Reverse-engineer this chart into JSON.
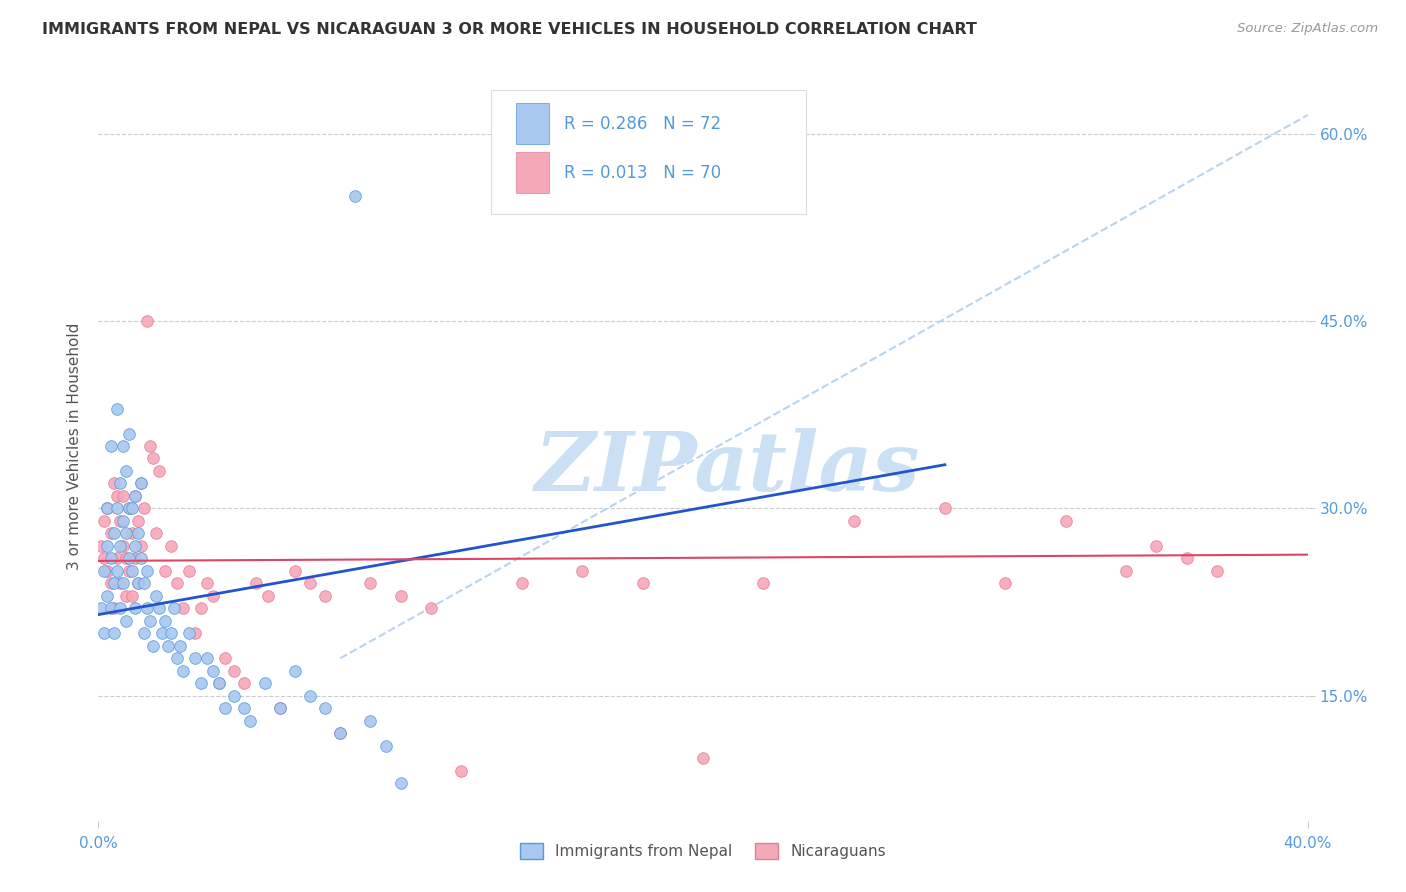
{
  "title": "IMMIGRANTS FROM NEPAL VS NICARAGUAN 3 OR MORE VEHICLES IN HOUSEHOLD CORRELATION CHART",
  "source": "Source: ZipAtlas.com",
  "ylabel": "3 or more Vehicles in Household",
  "ytick_labels": [
    "15.0%",
    "30.0%",
    "45.0%",
    "60.0%"
  ],
  "ytick_values": [
    0.15,
    0.3,
    0.45,
    0.6
  ],
  "xmin": 0.0,
  "xmax": 0.4,
  "ymin": 0.05,
  "ymax": 0.65,
  "legend_label1": "R = 0.286   N = 72",
  "legend_label2": "R = 0.013   N = 70",
  "legend_bottom_label1": "Immigrants from Nepal",
  "legend_bottom_label2": "Nicaraguans",
  "color_blue": "#a8c8f0",
  "color_pink": "#f5a8b8",
  "color_blue_dark": "#5599dd",
  "color_pink_dark": "#e87a9a",
  "line_blue": "#2255cc",
  "line_pink": "#dd4466",
  "line_dashed": "#b8d4ee",
  "nepal_x": [
    0.001,
    0.002,
    0.002,
    0.003,
    0.003,
    0.003,
    0.004,
    0.004,
    0.004,
    0.005,
    0.005,
    0.005,
    0.006,
    0.006,
    0.006,
    0.007,
    0.007,
    0.007,
    0.008,
    0.008,
    0.008,
    0.009,
    0.009,
    0.009,
    0.01,
    0.01,
    0.01,
    0.011,
    0.011,
    0.012,
    0.012,
    0.012,
    0.013,
    0.013,
    0.014,
    0.014,
    0.015,
    0.015,
    0.016,
    0.016,
    0.017,
    0.018,
    0.019,
    0.02,
    0.021,
    0.022,
    0.023,
    0.024,
    0.025,
    0.026,
    0.027,
    0.028,
    0.03,
    0.032,
    0.034,
    0.036,
    0.038,
    0.04,
    0.042,
    0.045,
    0.048,
    0.05,
    0.055,
    0.06,
    0.065,
    0.07,
    0.075,
    0.08,
    0.085,
    0.09,
    0.095,
    0.1
  ],
  "nepal_y": [
    0.22,
    0.2,
    0.25,
    0.23,
    0.27,
    0.3,
    0.26,
    0.22,
    0.35,
    0.24,
    0.28,
    0.2,
    0.3,
    0.25,
    0.38,
    0.27,
    0.32,
    0.22,
    0.29,
    0.24,
    0.35,
    0.28,
    0.33,
    0.21,
    0.3,
    0.26,
    0.36,
    0.25,
    0.3,
    0.27,
    0.22,
    0.31,
    0.24,
    0.28,
    0.26,
    0.32,
    0.24,
    0.2,
    0.22,
    0.25,
    0.21,
    0.19,
    0.23,
    0.22,
    0.2,
    0.21,
    0.19,
    0.2,
    0.22,
    0.18,
    0.19,
    0.17,
    0.2,
    0.18,
    0.16,
    0.18,
    0.17,
    0.16,
    0.14,
    0.15,
    0.14,
    0.13,
    0.16,
    0.14,
    0.17,
    0.15,
    0.14,
    0.12,
    0.55,
    0.13,
    0.11,
    0.08
  ],
  "nicaragua_x": [
    0.001,
    0.002,
    0.002,
    0.003,
    0.003,
    0.004,
    0.004,
    0.005,
    0.005,
    0.006,
    0.006,
    0.007,
    0.007,
    0.008,
    0.008,
    0.009,
    0.009,
    0.01,
    0.01,
    0.011,
    0.011,
    0.012,
    0.012,
    0.013,
    0.013,
    0.014,
    0.014,
    0.015,
    0.016,
    0.017,
    0.018,
    0.019,
    0.02,
    0.022,
    0.024,
    0.026,
    0.028,
    0.03,
    0.032,
    0.034,
    0.036,
    0.038,
    0.04,
    0.042,
    0.045,
    0.048,
    0.052,
    0.056,
    0.06,
    0.065,
    0.07,
    0.075,
    0.08,
    0.09,
    0.1,
    0.11,
    0.12,
    0.14,
    0.16,
    0.18,
    0.2,
    0.22,
    0.25,
    0.28,
    0.3,
    0.32,
    0.34,
    0.35,
    0.36,
    0.37
  ],
  "nicaragua_y": [
    0.27,
    0.29,
    0.26,
    0.3,
    0.25,
    0.28,
    0.24,
    0.32,
    0.22,
    0.31,
    0.26,
    0.29,
    0.24,
    0.27,
    0.31,
    0.26,
    0.23,
    0.3,
    0.25,
    0.28,
    0.23,
    0.31,
    0.26,
    0.29,
    0.24,
    0.32,
    0.27,
    0.3,
    0.45,
    0.35,
    0.34,
    0.28,
    0.33,
    0.25,
    0.27,
    0.24,
    0.22,
    0.25,
    0.2,
    0.22,
    0.24,
    0.23,
    0.16,
    0.18,
    0.17,
    0.16,
    0.24,
    0.23,
    0.14,
    0.25,
    0.24,
    0.23,
    0.12,
    0.24,
    0.23,
    0.22,
    0.09,
    0.24,
    0.25,
    0.24,
    0.1,
    0.24,
    0.29,
    0.3,
    0.24,
    0.29,
    0.25,
    0.27,
    0.26,
    0.25
  ],
  "nepal_trend_x": [
    0.0,
    0.28
  ],
  "nepal_trend_y": [
    0.215,
    0.335
  ],
  "nicaragua_trend_x": [
    0.0,
    0.4
  ],
  "nicaragua_trend_y": [
    0.258,
    0.263
  ],
  "dashed_trend_x": [
    0.08,
    0.4
  ],
  "dashed_trend_y": [
    0.18,
    0.615
  ],
  "watermark": "ZIPatlas",
  "watermark_color": "#cce0f5"
}
